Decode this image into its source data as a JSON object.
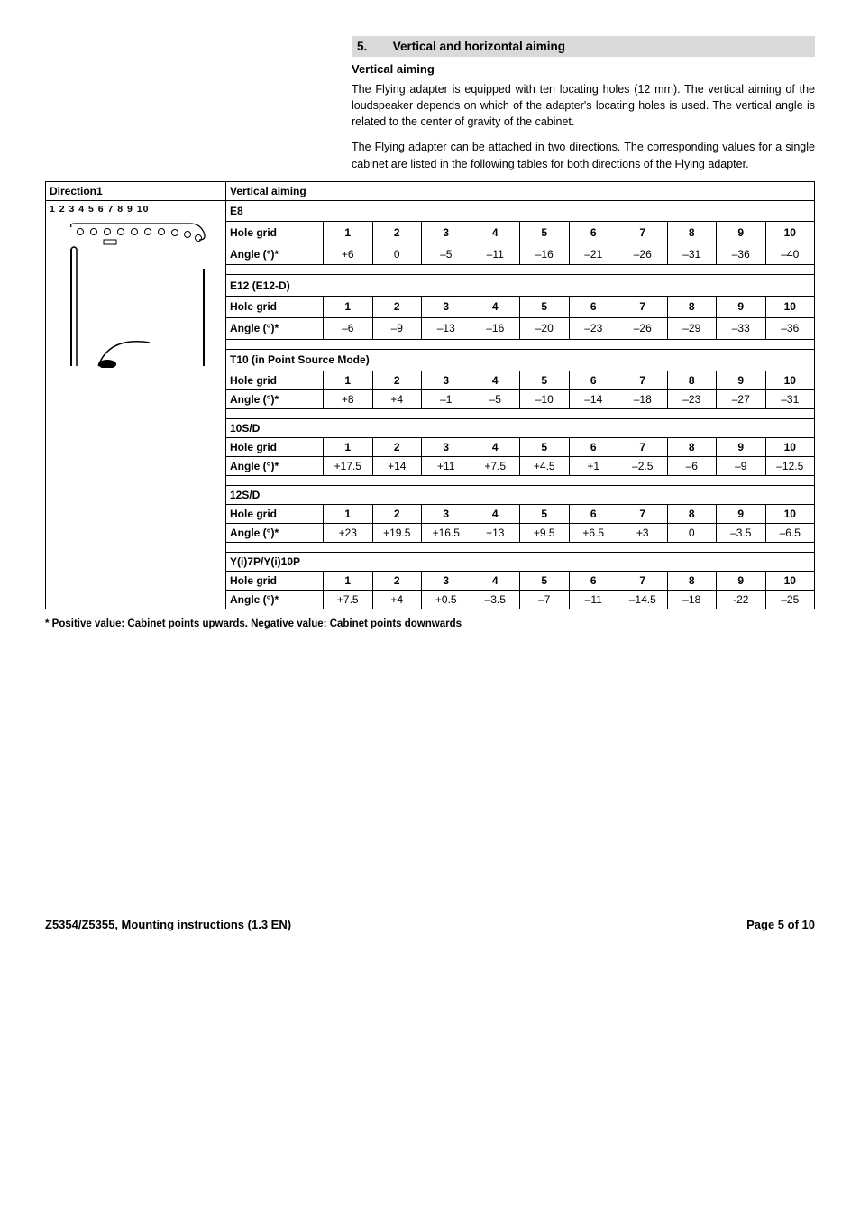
{
  "section": {
    "number": "5.",
    "title": "Vertical and horizontal aiming"
  },
  "subheading": "Vertical aiming",
  "para1": "The Flying adapter is equipped with ten locating holes (12 mm). The vertical aiming of the loudspeaker depends on which of the adapter's locating holes is used. The vertical angle is related to the center of gravity of the cabinet.",
  "para2": "The Flying adapter can be attached in two directions. The corresponding values for a single cabinet are listed in the following tables for both directions of the Flying adapter.",
  "direction_label": "Direction1",
  "vertical_aiming_label": "Vertical aiming",
  "hole_numbers_label": "1  2  3  4  5  6  7  8  9 10",
  "row_labels": {
    "hole_grid": "Hole grid",
    "angle": "Angle (°)*"
  },
  "columns": [
    "1",
    "2",
    "3",
    "4",
    "5",
    "6",
    "7",
    "8",
    "9",
    "10"
  ],
  "models": [
    {
      "name": "E8",
      "angles": [
        "+6",
        "0",
        "–5",
        "–11",
        "–16",
        "–21",
        "–26",
        "–31",
        "–36",
        "–40"
      ]
    },
    {
      "name": "E12 (E12-D)",
      "angles": [
        "–6",
        "–9",
        "–13",
        "–16",
        "–20",
        "–23",
        "–26",
        "–29",
        "–33",
        "–36"
      ]
    },
    {
      "name": "T10 (in Point Source Mode)",
      "name_html": "<b>T10</b> (in Point Source Mode)",
      "angles": [
        "+8",
        "+4",
        "–1",
        "–5",
        "–10",
        "–14",
        "–18",
        "–23",
        "–27",
        "–31"
      ]
    },
    {
      "name": "10S/D",
      "angles": [
        "+17.5",
        "+14",
        "+11",
        "+7.5",
        "+4.5",
        "+1",
        "–2.5",
        "–6",
        "–9",
        "–12.5"
      ]
    },
    {
      "name": "12S/D",
      "angles": [
        "+23",
        "+19.5",
        "+16.5",
        "+13",
        "+9.5",
        "+6.5",
        "+3",
        "0",
        "–3.5",
        "–6.5"
      ]
    },
    {
      "name": "Y(i)7P/Y(i)10P",
      "angles": [
        "+7.5",
        "+4",
        "+0.5",
        "–3.5",
        "–7",
        "–11",
        "–14.5",
        "–18",
        "-22",
        "–25"
      ]
    }
  ],
  "footnote": "* Positive value: Cabinet points upwards. Negative value: Cabinet points downwards",
  "footer_left": "Z5354/Z5355, Mounting instructions      (1.3 EN)",
  "footer_right": "Page 5 of 10"
}
